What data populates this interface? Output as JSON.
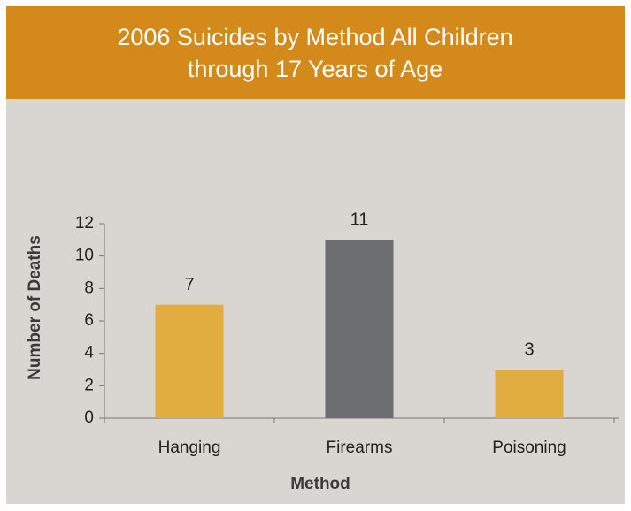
{
  "chart_data": {
    "type": "bar",
    "title": [
      "2006 Suicides by Method All Children",
      "through 17 Years of Age"
    ],
    "categories": [
      "Hanging",
      "Firearms",
      "Poisoning"
    ],
    "values": [
      7,
      11,
      3
    ],
    "colors": [
      "#e1ad41",
      "#6d6e71",
      "#e1ad41"
    ],
    "xlabel": "Method",
    "ylabel": "Number of Deaths",
    "ylim": [
      0,
      12
    ],
    "yticks": [
      0,
      2,
      4,
      6,
      8,
      10,
      12
    ]
  }
}
